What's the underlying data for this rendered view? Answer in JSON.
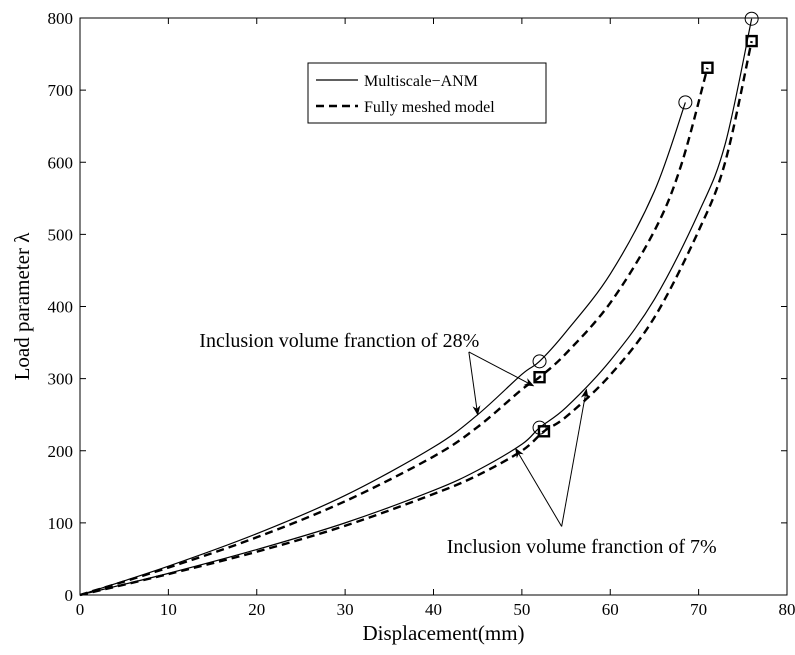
{
  "chart_data": {
    "type": "line",
    "xlabel": "Displacement(mm)",
    "ylabel": "Load parameter λ",
    "xlim": [
      0,
      80
    ],
    "ylim": [
      0,
      800
    ],
    "xticks": [
      0,
      10,
      20,
      30,
      40,
      50,
      60,
      70,
      80
    ],
    "yticks": [
      0,
      100,
      200,
      300,
      400,
      500,
      600,
      700,
      800
    ],
    "grid": false,
    "legend_position": "top-center",
    "legend": [
      {
        "label": "Multiscale−ANM",
        "style": "solid"
      },
      {
        "label": "Fully meshed model",
        "style": "dashed"
      }
    ],
    "series": [
      {
        "legend_index": 0,
        "style": "solid",
        "marker": "circle",
        "points": [
          [
            0,
            0
          ],
          [
            10,
            40
          ],
          [
            20,
            85
          ],
          [
            30,
            138
          ],
          [
            40,
            205
          ],
          [
            45,
            250
          ],
          [
            50,
            306
          ],
          [
            52,
            324
          ],
          [
            55,
            365
          ],
          [
            60,
            445
          ],
          [
            65,
            560
          ],
          [
            68.5,
            683
          ]
        ],
        "marker_points": [
          [
            52,
            324
          ],
          [
            68.5,
            683
          ]
        ]
      },
      {
        "legend_index": 1,
        "style": "dashed",
        "marker": "square",
        "points": [
          [
            0,
            0
          ],
          [
            10,
            38
          ],
          [
            20,
            80
          ],
          [
            30,
            130
          ],
          [
            40,
            192
          ],
          [
            45,
            233
          ],
          [
            50,
            285
          ],
          [
            52,
            302
          ],
          [
            55,
            335
          ],
          [
            60,
            405
          ],
          [
            65,
            505
          ],
          [
            68,
            595
          ],
          [
            71,
            731
          ]
        ],
        "marker_points": [
          [
            52,
            302
          ],
          [
            71,
            731
          ]
        ]
      },
      {
        "legend_index": 0,
        "style": "solid",
        "marker": "circle",
        "points": [
          [
            0,
            0
          ],
          [
            10,
            30
          ],
          [
            20,
            63
          ],
          [
            30,
            100
          ],
          [
            40,
            145
          ],
          [
            45,
            173
          ],
          [
            50,
            209
          ],
          [
            52,
            232
          ],
          [
            55,
            260
          ],
          [
            60,
            325
          ],
          [
            65,
            410
          ],
          [
            70,
            530
          ],
          [
            73,
            625
          ],
          [
            76,
            799
          ]
        ],
        "marker_points": [
          [
            52,
            232
          ],
          [
            76,
            799
          ]
        ]
      },
      {
        "legend_index": 1,
        "style": "dashed",
        "marker": "square",
        "points": [
          [
            0,
            0
          ],
          [
            10,
            29
          ],
          [
            20,
            60
          ],
          [
            30,
            96
          ],
          [
            40,
            140
          ],
          [
            45,
            166
          ],
          [
            50,
            200
          ],
          [
            52.5,
            227
          ],
          [
            55,
            247
          ],
          [
            60,
            305
          ],
          [
            65,
            385
          ],
          [
            70,
            505
          ],
          [
            73,
            600
          ],
          [
            76,
            768
          ]
        ],
        "marker_points": [
          [
            52.5,
            227
          ],
          [
            76,
            768
          ]
        ]
      }
    ],
    "annotations": [
      {
        "text": "Inclusion volume franction of 28%",
        "text_at": [
          13.5,
          344
        ],
        "anchor_at": [
          44,
          344
        ],
        "arrows_to": [
          [
            45,
            250
          ],
          [
            51.3,
            290
          ]
        ]
      },
      {
        "text": "Inclusion volume franction of 7%",
        "text_at": [
          41.5,
          58
        ],
        "anchor_at": [
          54.5,
          95
        ],
        "arrows_to": [
          [
            49.3,
            203
          ],
          [
            57.3,
            285
          ]
        ]
      }
    ]
  }
}
